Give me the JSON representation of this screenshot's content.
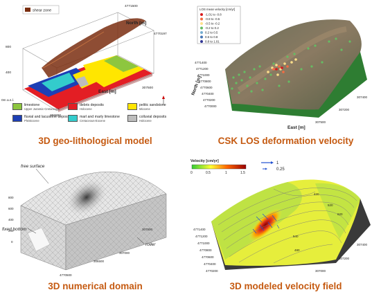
{
  "panels": {
    "geo": {
      "caption": "3D geo-lithological model",
      "box_legend": "shear zone",
      "north_label": "North [m]",
      "east_label": "East [m]",
      "coords": [
        "4771500",
        "4770197",
        "307500",
        "306800"
      ],
      "elev_ticks": [
        "800",
        "400",
        "0m a.s.l."
      ],
      "legend": [
        {
          "name": "limestone",
          "sub": "Upper Jurassic-Cretaceous",
          "color": "#8dc63f"
        },
        {
          "name": "debris deposits",
          "sub": "Holocene",
          "color": "#e31e24"
        },
        {
          "name": "pelitic sandstone",
          "sub": "Miocene",
          "color": "#ffe600"
        },
        {
          "name": "fluvial and lacustrine deposits",
          "sub": "Pleistocene",
          "color": "#1d3fb5"
        },
        {
          "name": "marl and marly limestone",
          "sub": "Cretaceous-Eocene",
          "color": "#33cccc"
        },
        {
          "name": "colluvial deposits",
          "sub": "Holocene",
          "color": "#bdbdbd"
        }
      ]
    },
    "csk": {
      "caption": "CSK LOS deformation velocity",
      "legend_title": "LOS mean velocity [cm/yr]",
      "legend": [
        {
          "range": "-1.01  to  -0.8",
          "color": "#d7191c"
        },
        {
          "range": "-0.8  to  -0.5",
          "color": "#f46d43"
        },
        {
          "range": "-0.5  to  -0.2",
          "color": "#fee08b"
        },
        {
          "range": "-0.2  to  0.2",
          "color": "#66bd63"
        },
        {
          "range": "0.2  to  0.5",
          "color": "#74add1"
        },
        {
          "range": "0.5  to  0.8",
          "color": "#4575b4"
        },
        {
          "range": "0.8  to  1.01",
          "color": "#313695"
        }
      ],
      "north_label": "North [m]",
      "east_label": "East [m]",
      "north_ticks": [
        "4771400",
        "4771200",
        "4771000",
        "4770800",
        "4770600",
        "4770400",
        "4770200",
        "4770000"
      ],
      "east_ticks": [
        "307500",
        "307200",
        "307400"
      ]
    },
    "numerical": {
      "caption": "3D numerical domain",
      "free_surface": "free surface",
      "fixed_bottom": "fixed bottom",
      "roller": "roller",
      "elev_ticks": [
        "800",
        "600",
        "400",
        "200",
        "0"
      ],
      "coord_ticks": [
        "4770500",
        "306500",
        "307000",
        "307500"
      ]
    },
    "velocity": {
      "caption": "3D modeled velocity field",
      "colorbar_title": "Velocity [cm/yr]",
      "colorbar_ticks": [
        "0",
        "0.5",
        "1",
        "1.5"
      ],
      "arrow_labels": [
        "1",
        "0.25"
      ],
      "north_ticks": [
        "4771400",
        "4771200",
        "4771000",
        "4770800",
        "4770600",
        "4770400",
        "4770200"
      ],
      "east_ticks": [
        "307000",
        "307200",
        "307400"
      ],
      "contour_labels": [
        "420",
        "520",
        "620",
        "540",
        "480"
      ]
    }
  }
}
